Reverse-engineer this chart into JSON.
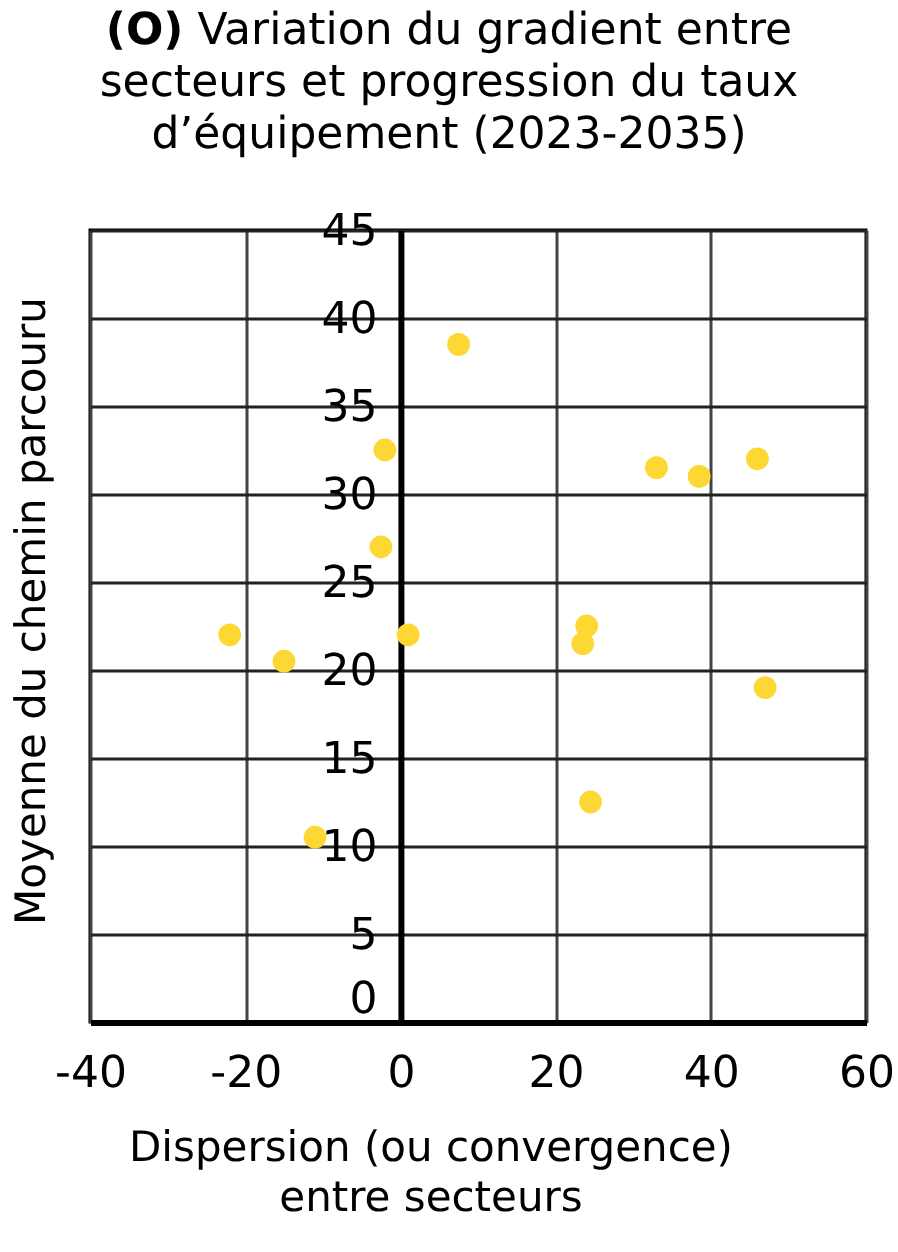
{
  "chart_data": {
    "type": "scatter",
    "title": "(O) Variation du gradient entre secteurs et progression du taux d’équipement (2023-2035)",
    "xlabel": "Dispersion (ou convergence) entre secteurs",
    "ylabel": "Moyenne du chemin parcouru",
    "x": [
      7.5,
      -2,
      -2.5,
      33,
      38.5,
      46,
      -22,
      -15,
      1,
      -11,
      24,
      23.5,
      47,
      24.5
    ],
    "series": [
      {
        "color": "#fdd835",
        "values": [
          38.5,
          32.5,
          27,
          31.5,
          31,
          32,
          22,
          20.5,
          22,
          10.5,
          22.5,
          21.5,
          19,
          12.5
        ]
      }
    ],
    "xlim": [
      -40,
      60
    ],
    "xticks": [
      -40,
      -20,
      0,
      20,
      40,
      60
    ],
    "ylim": [
      0,
      45
    ],
    "yticks": [
      0,
      5,
      10,
      15,
      20,
      25,
      30,
      35,
      40,
      45
    ],
    "grid": true,
    "marker": "circle"
  }
}
